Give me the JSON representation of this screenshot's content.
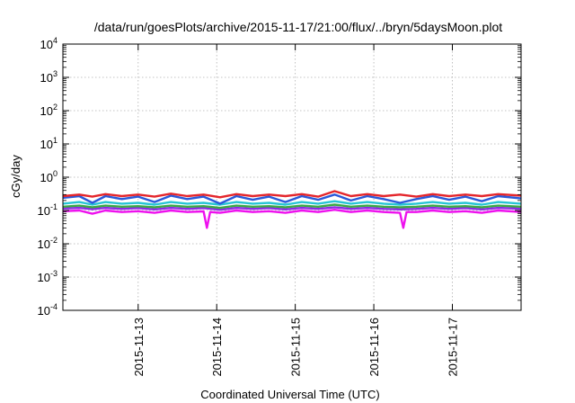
{
  "chart_data": {
    "type": "line",
    "title": "/data/run/goesPlots/archive/2015-11-17/21:00/flux/../bryn/5daysMoon.plot",
    "xlabel": "Coordinated Universal Time (UTC)",
    "ylabel": "cGy/day",
    "yscale": "log",
    "ylim": [
      0.0001,
      10000
    ],
    "xlim": [
      "2015-11-12T01:00",
      "2015-11-17T21:00"
    ],
    "grid": true,
    "x_ticks": [
      "2015-11-13",
      "2015-11-14",
      "2015-11-15",
      "2015-11-16",
      "2015-11-17"
    ],
    "y_ticks": [
      {
        "base": "10",
        "exp": "-4",
        "value": 0.0001
      },
      {
        "base": "10",
        "exp": "-3",
        "value": 0.001
      },
      {
        "base": "10",
        "exp": "-2",
        "value": 0.01
      },
      {
        "base": "10",
        "exp": "-1",
        "value": 0.1
      },
      {
        "base": "10",
        "exp": "0",
        "value": 1
      },
      {
        "base": "10",
        "exp": "1",
        "value": 10
      },
      {
        "base": "10",
        "exp": "2",
        "value": 100
      },
      {
        "base": "10",
        "exp": "3",
        "value": 1000
      },
      {
        "base": "10",
        "exp": "4",
        "value": 10000
      }
    ],
    "series": [
      {
        "color": "#e4262c",
        "values": [
          {
            "x": "2015-11-12T01:00",
            "y": 0.27
          },
          {
            "x": "2015-11-12T06:00",
            "y": 0.3
          },
          {
            "x": "2015-11-12T10:00",
            "y": 0.26
          },
          {
            "x": "2015-11-12T14:00",
            "y": 0.31
          },
          {
            "x": "2015-11-12T19:00",
            "y": 0.27
          },
          {
            "x": "2015-11-13T00:00",
            "y": 0.3
          },
          {
            "x": "2015-11-13T05:00",
            "y": 0.26
          },
          {
            "x": "2015-11-13T10:00",
            "y": 0.32
          },
          {
            "x": "2015-11-13T15:00",
            "y": 0.27
          },
          {
            "x": "2015-11-13T20:00",
            "y": 0.3
          },
          {
            "x": "2015-11-14T01:00",
            "y": 0.25
          },
          {
            "x": "2015-11-14T06:00",
            "y": 0.31
          },
          {
            "x": "2015-11-14T11:00",
            "y": 0.27
          },
          {
            "x": "2015-11-14T16:00",
            "y": 0.3
          },
          {
            "x": "2015-11-14T21:00",
            "y": 0.27
          },
          {
            "x": "2015-11-15T02:00",
            "y": 0.31
          },
          {
            "x": "2015-11-15T07:00",
            "y": 0.26
          },
          {
            "x": "2015-11-15T12:00",
            "y": 0.38
          },
          {
            "x": "2015-11-15T17:00",
            "y": 0.27
          },
          {
            "x": "2015-11-15T22:00",
            "y": 0.31
          },
          {
            "x": "2015-11-16T03:00",
            "y": 0.27
          },
          {
            "x": "2015-11-16T08:00",
            "y": 0.3
          },
          {
            "x": "2015-11-16T13:00",
            "y": 0.26
          },
          {
            "x": "2015-11-16T18:00",
            "y": 0.31
          },
          {
            "x": "2015-11-16T23:00",
            "y": 0.27
          },
          {
            "x": "2015-11-17T04:00",
            "y": 0.3
          },
          {
            "x": "2015-11-17T09:00",
            "y": 0.27
          },
          {
            "x": "2015-11-17T14:00",
            "y": 0.31
          },
          {
            "x": "2015-11-17T21:00",
            "y": 0.28
          }
        ]
      },
      {
        "color": "#2a59d9",
        "values": [
          {
            "x": "2015-11-12T01:00",
            "y": 0.24
          },
          {
            "x": "2015-11-12T06:00",
            "y": 0.27
          },
          {
            "x": "2015-11-12T10:00",
            "y": 0.17
          },
          {
            "x": "2015-11-12T14:00",
            "y": 0.27
          },
          {
            "x": "2015-11-12T19:00",
            "y": 0.22
          },
          {
            "x": "2015-11-13T00:00",
            "y": 0.26
          },
          {
            "x": "2015-11-13T05:00",
            "y": 0.18
          },
          {
            "x": "2015-11-13T10:00",
            "y": 0.28
          },
          {
            "x": "2015-11-13T15:00",
            "y": 0.22
          },
          {
            "x": "2015-11-13T20:00",
            "y": 0.26
          },
          {
            "x": "2015-11-14T01:00",
            "y": 0.16
          },
          {
            "x": "2015-11-14T06:00",
            "y": 0.27
          },
          {
            "x": "2015-11-14T11:00",
            "y": 0.21
          },
          {
            "x": "2015-11-14T16:00",
            "y": 0.26
          },
          {
            "x": "2015-11-14T21:00",
            "y": 0.18
          },
          {
            "x": "2015-11-15T02:00",
            "y": 0.27
          },
          {
            "x": "2015-11-15T07:00",
            "y": 0.21
          },
          {
            "x": "2015-11-15T12:00",
            "y": 0.3
          },
          {
            "x": "2015-11-15T17:00",
            "y": 0.2
          },
          {
            "x": "2015-11-15T22:00",
            "y": 0.27
          },
          {
            "x": "2015-11-16T03:00",
            "y": 0.22
          },
          {
            "x": "2015-11-16T08:00",
            "y": 0.17
          },
          {
            "x": "2015-11-16T13:00",
            "y": 0.22
          },
          {
            "x": "2015-11-16T18:00",
            "y": 0.27
          },
          {
            "x": "2015-11-16T23:00",
            "y": 0.21
          },
          {
            "x": "2015-11-17T04:00",
            "y": 0.26
          },
          {
            "x": "2015-11-17T09:00",
            "y": 0.19
          },
          {
            "x": "2015-11-17T14:00",
            "y": 0.27
          },
          {
            "x": "2015-11-17T21:00",
            "y": 0.23
          }
        ]
      },
      {
        "color": "#27c5d4",
        "values": [
          {
            "x": "2015-11-12T01:00",
            "y": 0.16
          },
          {
            "x": "2015-11-12T06:00",
            "y": 0.18
          },
          {
            "x": "2015-11-12T10:00",
            "y": 0.15
          },
          {
            "x": "2015-11-12T14:00",
            "y": 0.18
          },
          {
            "x": "2015-11-12T19:00",
            "y": 0.16
          },
          {
            "x": "2015-11-13T00:00",
            "y": 0.17
          },
          {
            "x": "2015-11-13T05:00",
            "y": 0.15
          },
          {
            "x": "2015-11-13T10:00",
            "y": 0.18
          },
          {
            "x": "2015-11-13T15:00",
            "y": 0.16
          },
          {
            "x": "2015-11-13T20:00",
            "y": 0.17
          },
          {
            "x": "2015-11-14T01:00",
            "y": 0.15
          },
          {
            "x": "2015-11-14T06:00",
            "y": 0.18
          },
          {
            "x": "2015-11-14T11:00",
            "y": 0.16
          },
          {
            "x": "2015-11-14T16:00",
            "y": 0.17
          },
          {
            "x": "2015-11-14T21:00",
            "y": 0.15
          },
          {
            "x": "2015-11-15T02:00",
            "y": 0.18
          },
          {
            "x": "2015-11-15T07:00",
            "y": 0.16
          },
          {
            "x": "2015-11-15T12:00",
            "y": 0.19
          },
          {
            "x": "2015-11-15T17:00",
            "y": 0.16
          },
          {
            "x": "2015-11-15T22:00",
            "y": 0.18
          },
          {
            "x": "2015-11-16T03:00",
            "y": 0.16
          },
          {
            "x": "2015-11-16T08:00",
            "y": 0.15
          },
          {
            "x": "2015-11-16T13:00",
            "y": 0.16
          },
          {
            "x": "2015-11-16T18:00",
            "y": 0.18
          },
          {
            "x": "2015-11-16T23:00",
            "y": 0.16
          },
          {
            "x": "2015-11-17T04:00",
            "y": 0.17
          },
          {
            "x": "2015-11-17T09:00",
            "y": 0.15
          },
          {
            "x": "2015-11-17T14:00",
            "y": 0.18
          },
          {
            "x": "2015-11-17T21:00",
            "y": 0.16
          }
        ]
      },
      {
        "color": "#3aa845",
        "values": [
          {
            "x": "2015-11-12T01:00",
            "y": 0.13
          },
          {
            "x": "2015-11-12T06:00",
            "y": 0.14
          },
          {
            "x": "2015-11-12T10:00",
            "y": 0.125
          },
          {
            "x": "2015-11-12T14:00",
            "y": 0.14
          },
          {
            "x": "2015-11-12T19:00",
            "y": 0.13
          },
          {
            "x": "2015-11-13T00:00",
            "y": 0.135
          },
          {
            "x": "2015-11-13T05:00",
            "y": 0.125
          },
          {
            "x": "2015-11-13T10:00",
            "y": 0.14
          },
          {
            "x": "2015-11-13T15:00",
            "y": 0.13
          },
          {
            "x": "2015-11-13T20:00",
            "y": 0.135
          },
          {
            "x": "2015-11-14T01:00",
            "y": 0.12
          },
          {
            "x": "2015-11-14T06:00",
            "y": 0.14
          },
          {
            "x": "2015-11-14T11:00",
            "y": 0.13
          },
          {
            "x": "2015-11-14T16:00",
            "y": 0.135
          },
          {
            "x": "2015-11-14T21:00",
            "y": 0.125
          },
          {
            "x": "2015-11-15T02:00",
            "y": 0.14
          },
          {
            "x": "2015-11-15T07:00",
            "y": 0.13
          },
          {
            "x": "2015-11-15T12:00",
            "y": 0.15
          },
          {
            "x": "2015-11-15T17:00",
            "y": 0.13
          },
          {
            "x": "2015-11-15T22:00",
            "y": 0.14
          },
          {
            "x": "2015-11-16T03:00",
            "y": 0.13
          },
          {
            "x": "2015-11-16T08:00",
            "y": 0.125
          },
          {
            "x": "2015-11-16T13:00",
            "y": 0.13
          },
          {
            "x": "2015-11-16T18:00",
            "y": 0.14
          },
          {
            "x": "2015-11-16T23:00",
            "y": 0.13
          },
          {
            "x": "2015-11-17T04:00",
            "y": 0.135
          },
          {
            "x": "2015-11-17T09:00",
            "y": 0.125
          },
          {
            "x": "2015-11-17T14:00",
            "y": 0.14
          },
          {
            "x": "2015-11-17T21:00",
            "y": 0.13
          }
        ]
      },
      {
        "color": "#8a2be2",
        "values": [
          {
            "x": "2015-11-12T01:00",
            "y": 0.115
          },
          {
            "x": "2015-11-12T06:00",
            "y": 0.12
          },
          {
            "x": "2015-11-12T10:00",
            "y": 0.11
          },
          {
            "x": "2015-11-12T14:00",
            "y": 0.12
          },
          {
            "x": "2015-11-12T19:00",
            "y": 0.112
          },
          {
            "x": "2015-11-13T00:00",
            "y": 0.118
          },
          {
            "x": "2015-11-13T05:00",
            "y": 0.108
          },
          {
            "x": "2015-11-13T10:00",
            "y": 0.12
          },
          {
            "x": "2015-11-13T15:00",
            "y": 0.112
          },
          {
            "x": "2015-11-13T20:00",
            "y": 0.118
          },
          {
            "x": "2015-11-14T01:00",
            "y": 0.105
          },
          {
            "x": "2015-11-14T06:00",
            "y": 0.12
          },
          {
            "x": "2015-11-14T11:00",
            "y": 0.112
          },
          {
            "x": "2015-11-14T16:00",
            "y": 0.118
          },
          {
            "x": "2015-11-14T21:00",
            "y": 0.108
          },
          {
            "x": "2015-11-15T02:00",
            "y": 0.12
          },
          {
            "x": "2015-11-15T07:00",
            "y": 0.112
          },
          {
            "x": "2015-11-15T12:00",
            "y": 0.125
          },
          {
            "x": "2015-11-15T17:00",
            "y": 0.112
          },
          {
            "x": "2015-11-15T22:00",
            "y": 0.12
          },
          {
            "x": "2015-11-16T03:00",
            "y": 0.112
          },
          {
            "x": "2015-11-16T08:00",
            "y": 0.108
          },
          {
            "x": "2015-11-16T13:00",
            "y": 0.112
          },
          {
            "x": "2015-11-16T18:00",
            "y": 0.12
          },
          {
            "x": "2015-11-16T23:00",
            "y": 0.112
          },
          {
            "x": "2015-11-17T04:00",
            "y": 0.118
          },
          {
            "x": "2015-11-17T09:00",
            "y": 0.108
          },
          {
            "x": "2015-11-17T14:00",
            "y": 0.12
          },
          {
            "x": "2015-11-17T21:00",
            "y": 0.113
          }
        ]
      },
      {
        "color": "#ee11ee",
        "values": [
          {
            "x": "2015-11-12T01:00",
            "y": 0.095
          },
          {
            "x": "2015-11-12T06:00",
            "y": 0.1
          },
          {
            "x": "2015-11-12T10:00",
            "y": 0.08
          },
          {
            "x": "2015-11-12T14:00",
            "y": 0.1
          },
          {
            "x": "2015-11-12T19:00",
            "y": 0.09
          },
          {
            "x": "2015-11-13T00:00",
            "y": 0.095
          },
          {
            "x": "2015-11-13T05:00",
            "y": 0.085
          },
          {
            "x": "2015-11-13T10:00",
            "y": 0.1
          },
          {
            "x": "2015-11-13T15:00",
            "y": 0.09
          },
          {
            "x": "2015-11-13T20:00",
            "y": 0.094
          },
          {
            "x": "2015-11-13T21:00",
            "y": 0.03
          },
          {
            "x": "2015-11-13T22:00",
            "y": 0.09
          },
          {
            "x": "2015-11-14T01:00",
            "y": 0.085
          },
          {
            "x": "2015-11-14T06:00",
            "y": 0.1
          },
          {
            "x": "2015-11-14T11:00",
            "y": 0.09
          },
          {
            "x": "2015-11-14T16:00",
            "y": 0.095
          },
          {
            "x": "2015-11-14T21:00",
            "y": 0.085
          },
          {
            "x": "2015-11-15T02:00",
            "y": 0.1
          },
          {
            "x": "2015-11-15T07:00",
            "y": 0.09
          },
          {
            "x": "2015-11-15T12:00",
            "y": 0.105
          },
          {
            "x": "2015-11-15T17:00",
            "y": 0.09
          },
          {
            "x": "2015-11-15T22:00",
            "y": 0.1
          },
          {
            "x": "2015-11-16T03:00",
            "y": 0.09
          },
          {
            "x": "2015-11-16T08:00",
            "y": 0.085
          },
          {
            "x": "2015-11-16T09:00",
            "y": 0.03
          },
          {
            "x": "2015-11-16T10:00",
            "y": 0.09
          },
          {
            "x": "2015-11-16T13:00",
            "y": 0.09
          },
          {
            "x": "2015-11-16T18:00",
            "y": 0.1
          },
          {
            "x": "2015-11-16T23:00",
            "y": 0.09
          },
          {
            "x": "2015-11-17T04:00",
            "y": 0.095
          },
          {
            "x": "2015-11-17T09:00",
            "y": 0.085
          },
          {
            "x": "2015-11-17T14:00",
            "y": 0.1
          },
          {
            "x": "2015-11-17T21:00",
            "y": 0.09
          }
        ]
      }
    ]
  }
}
